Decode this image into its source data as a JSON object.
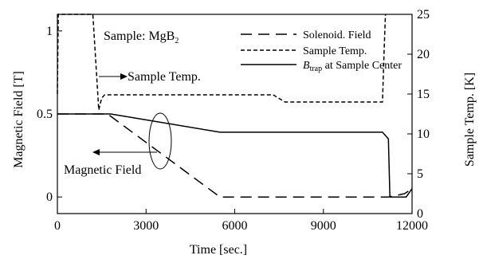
{
  "chart_data": {
    "type": "line",
    "xlabel": "Time [sec.]",
    "ylabel": "Magnetic Field [T]",
    "y2label": "Sample Temp. [K]",
    "xlim": [
      0,
      12000
    ],
    "ylim": [
      -0.1,
      1.1
    ],
    "y2lim": [
      0,
      25
    ],
    "x_ticks": [
      0,
      3000,
      6000,
      9000,
      12000
    ],
    "y_ticks": [
      0,
      0.5,
      1
    ],
    "y2_ticks": [
      0,
      5,
      10,
      15,
      20,
      25
    ],
    "grid": false,
    "legend_position": "top-right",
    "series": [
      {
        "name": "Solenoid. Field",
        "axis": "left",
        "style": "long-dash",
        "x": [
          0,
          1700,
          5500,
          11200,
          11750,
          12000
        ],
        "y": [
          0.5,
          0.5,
          0,
          0,
          0.02,
          0.05
        ]
      },
      {
        "name": "Sample Temp.",
        "axis": "right",
        "style": "short-dash",
        "x": [
          0,
          30,
          120,
          1200,
          1400,
          1500,
          1600,
          7300,
          7700,
          11000,
          11050,
          11100
        ],
        "y": [
          15,
          25,
          25,
          25,
          13,
          14.5,
          14.9,
          14.9,
          14,
          14,
          20,
          25
        ]
      },
      {
        "name": "B_trap at Sample Center",
        "legend_main": "B",
        "legend_sub": "trap",
        "legend_tail": " at Sample Center",
        "axis": "left",
        "style": "solid",
        "x": [
          0,
          1800,
          5500,
          11000,
          11200,
          11250,
          11800,
          12000
        ],
        "y": [
          0.5,
          0.5,
          0.39,
          0.39,
          0.35,
          0,
          0,
          0.05
        ]
      }
    ],
    "annotations": {
      "sample_main": "Sample: MgB",
      "sample_sub": "2",
      "temp_arrow": "Sample Temp.",
      "field_arrow": "Magnetic Field"
    }
  }
}
